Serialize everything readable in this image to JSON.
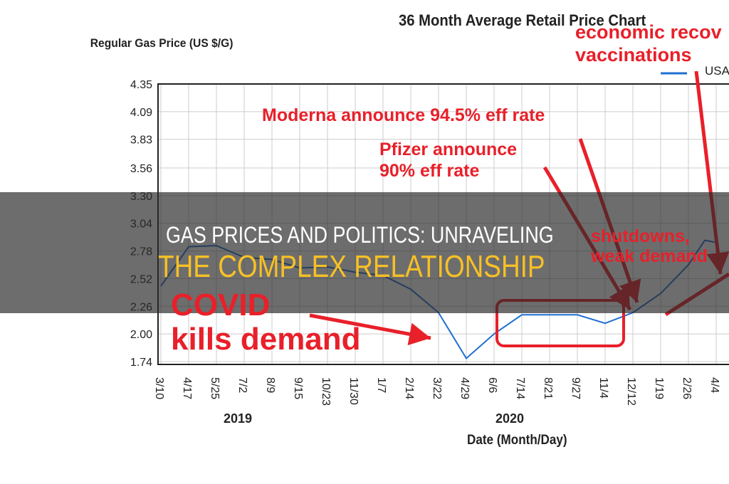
{
  "chart_data": {
    "type": "line",
    "title": "36 Month Average Retail Price Chart",
    "ylabel": "Regular Gas Price (US $/G)",
    "xlabel": "Date (Month/Day)",
    "ylim": [
      1.74,
      4.35
    ],
    "yticks": [
      "4.35",
      "4.09",
      "3.83",
      "3.56",
      "3.30",
      "3.04",
      "2.78",
      "2.52",
      "2.26",
      "2.00",
      "1.74"
    ],
    "xticks": [
      "3/10",
      "4/17",
      "5/25",
      "7/2",
      "8/9",
      "9/15",
      "10/23",
      "11/30",
      "1/7",
      "2/14",
      "3/22",
      "4/29",
      "6/6",
      "7/14",
      "8/21",
      "9/27",
      "11/4",
      "12/12",
      "1/19",
      "2/26",
      "4/4"
    ],
    "years": [
      "2019",
      "2020"
    ],
    "grid": true,
    "legend": {
      "position": "top-right",
      "entries": [
        "USA"
      ]
    },
    "series": [
      {
        "name": "USA",
        "color": "#1f6fd0",
        "x": [
          "3/10",
          "4/17",
          "5/25",
          "7/2",
          "8/9",
          "9/15",
          "10/23",
          "11/30",
          "1/7",
          "2/14",
          "3/22",
          "4/29",
          "6/6",
          "7/14",
          "8/21",
          "9/27",
          "11/4",
          "12/12",
          "1/19",
          "2/26",
          "4/4"
        ],
        "values": [
          2.45,
          2.82,
          2.83,
          2.72,
          2.7,
          2.62,
          2.63,
          2.58,
          2.55,
          2.42,
          2.2,
          1.77,
          2.0,
          2.18,
          2.18,
          2.18,
          2.1,
          2.2,
          2.38,
          2.65,
          2.86
        ]
      }
    ]
  },
  "annotations": {
    "economic": "economic recov",
    "vaccinations": "vaccinations",
    "moderna": "Moderna announce 94.5% eff rate",
    "pfizer1": "Pfizer announce",
    "pfizer2": "90% eff rate",
    "shutdowns1": "shutdowns,",
    "shutdowns2": "weak demand",
    "covid1": "COVID",
    "covid2": "kills demand",
    "color": "#e8202a"
  },
  "banner": {
    "line1": "GAS PRICES AND POLITICS: UNRAVELING",
    "line2": "THE COMPLEX RELATIONSHIP",
    "line2_color": "#f6c026"
  }
}
